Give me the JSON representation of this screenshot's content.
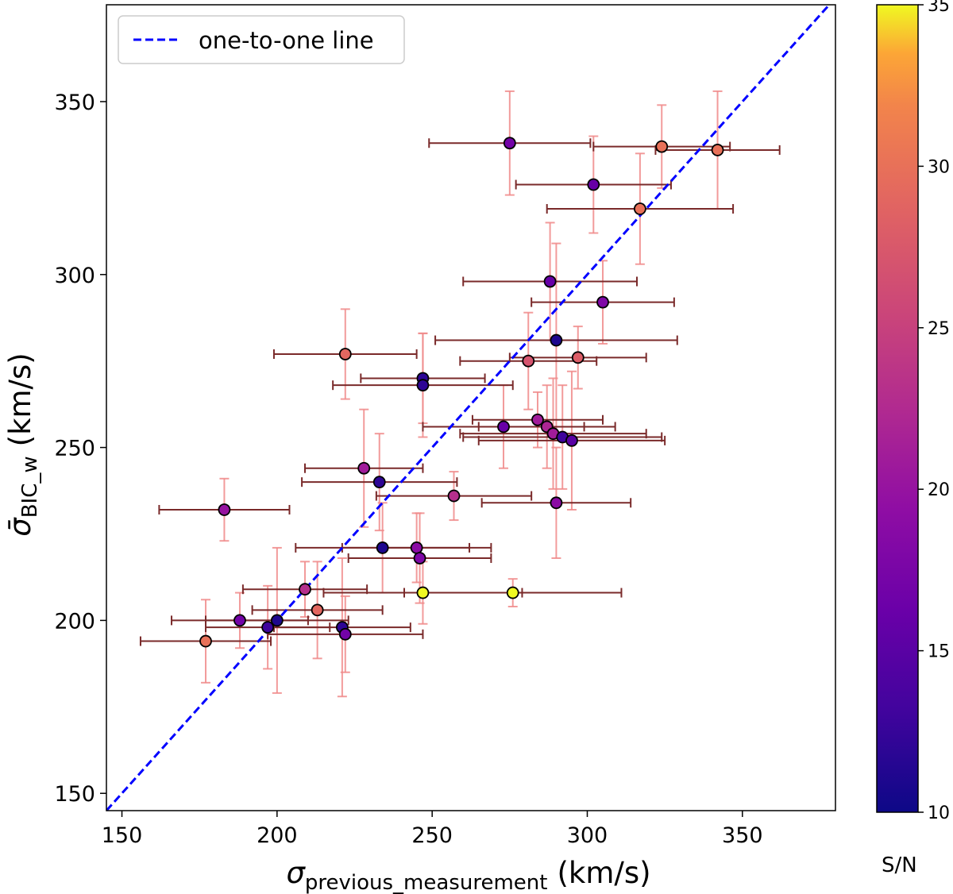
{
  "chart_data": {
    "type": "scatter",
    "title": "",
    "xlabel": {
      "symbol": "σ",
      "sub": "previous_measurement",
      "unit": "(km/s)"
    },
    "ylabel": {
      "symbol": "σ̄",
      "sub": "BIC_w",
      "unit": "(km/s)"
    },
    "xlim": [
      145,
      380
    ],
    "ylim": [
      145,
      378
    ],
    "xticks": [
      150,
      200,
      250,
      300,
      350
    ],
    "yticks": [
      150,
      200,
      250,
      300,
      350
    ],
    "legend": {
      "position": "upper-left",
      "entries": [
        "one-to-one line"
      ]
    },
    "reference_line": {
      "name": "one-to-one line",
      "color": "#0000ff",
      "style": "dashed"
    },
    "colorbar": {
      "label": "S/N",
      "min": 10,
      "max": 35,
      "ticks": [
        10,
        15,
        20,
        25,
        30,
        35
      ],
      "colormap": "plasma"
    },
    "errorbar_colors": {
      "x": "#7a2a2a",
      "y": "#f08a8a"
    },
    "points": [
      {
        "x": 275,
        "y": 338,
        "xerr": 26,
        "yerr": 15,
        "sn": 17
      },
      {
        "x": 324,
        "y": 337,
        "xerr": 22,
        "yerr": 12,
        "sn": 30
      },
      {
        "x": 342,
        "y": 336,
        "xerr": 20,
        "yerr": 17,
        "sn": 30
      },
      {
        "x": 302,
        "y": 326,
        "xerr": 25,
        "yerr": 14,
        "sn": 16
      },
      {
        "x": 317,
        "y": 319,
        "xerr": 30,
        "yerr": 16,
        "sn": 30
      },
      {
        "x": 288,
        "y": 298,
        "xerr": 28,
        "yerr": 17,
        "sn": 16
      },
      {
        "x": 305,
        "y": 292,
        "xerr": 23,
        "yerr": 12,
        "sn": 18
      },
      {
        "x": 290,
        "y": 281,
        "xerr": 39,
        "yerr": 28,
        "sn": 11
      },
      {
        "x": 222,
        "y": 277,
        "xerr": 23,
        "yerr": 13,
        "sn": 29
      },
      {
        "x": 281,
        "y": 275,
        "xerr": 22,
        "yerr": 14,
        "sn": 27
      },
      {
        "x": 297,
        "y": 276,
        "xerr": 22,
        "yerr": 9,
        "sn": 28
      },
      {
        "x": 247,
        "y": 270,
        "xerr": 20,
        "yerr": 13,
        "sn": 12
      },
      {
        "x": 247,
        "y": 268,
        "xerr": 29,
        "yerr": 15,
        "sn": 12
      },
      {
        "x": 284,
        "y": 258,
        "xerr": 21,
        "yerr": 8,
        "sn": 21
      },
      {
        "x": 273,
        "y": 256,
        "xerr": 26,
        "yerr": 12,
        "sn": 16
      },
      {
        "x": 287,
        "y": 256,
        "xerr": 22,
        "yerr": 12,
        "sn": 22
      },
      {
        "x": 289,
        "y": 254,
        "xerr": 30,
        "yerr": 16,
        "sn": 21
      },
      {
        "x": 292,
        "y": 253,
        "xerr": 32,
        "yerr": 15,
        "sn": 13
      },
      {
        "x": 295,
        "y": 252,
        "xerr": 30,
        "yerr": 20,
        "sn": 15
      },
      {
        "x": 228,
        "y": 244,
        "xerr": 19,
        "yerr": 17,
        "sn": 21
      },
      {
        "x": 233,
        "y": 240,
        "xerr": 25,
        "yerr": 14,
        "sn": 12
      },
      {
        "x": 257,
        "y": 236,
        "xerr": 25,
        "yerr": 7,
        "sn": 23
      },
      {
        "x": 290,
        "y": 234,
        "xerr": 24,
        "yerr": 16,
        "sn": 19
      },
      {
        "x": 183,
        "y": 232,
        "xerr": 21,
        "yerr": 9,
        "sn": 20
      },
      {
        "x": 234,
        "y": 221,
        "xerr": 28,
        "yerr": 13,
        "sn": 11
      },
      {
        "x": 245,
        "y": 221,
        "xerr": 24,
        "yerr": 10,
        "sn": 19
      },
      {
        "x": 246,
        "y": 218,
        "xerr": 23,
        "yerr": 13,
        "sn": 18
      },
      {
        "x": 209,
        "y": 209,
        "xerr": 20,
        "yerr": 8,
        "sn": 23
      },
      {
        "x": 247,
        "y": 208,
        "xerr": 32,
        "yerr": 9,
        "sn": 35
      },
      {
        "x": 276,
        "y": 208,
        "xerr": 35,
        "yerr": 4,
        "sn": 35
      },
      {
        "x": 213,
        "y": 203,
        "xerr": 21,
        "yerr": 14,
        "sn": 29
      },
      {
        "x": 188,
        "y": 200,
        "xerr": 22,
        "yerr": 8,
        "sn": 17
      },
      {
        "x": 200,
        "y": 200,
        "xerr": 23,
        "yerr": 21,
        "sn": 11
      },
      {
        "x": 197,
        "y": 198,
        "xerr": 20,
        "yerr": 12,
        "sn": 13
      },
      {
        "x": 221,
        "y": 198,
        "xerr": 22,
        "yerr": 20,
        "sn": 12
      },
      {
        "x": 222,
        "y": 196,
        "xerr": 25,
        "yerr": 11,
        "sn": 17
      },
      {
        "x": 177,
        "y": 194,
        "xerr": 21,
        "yerr": 12,
        "sn": 30
      }
    ]
  }
}
